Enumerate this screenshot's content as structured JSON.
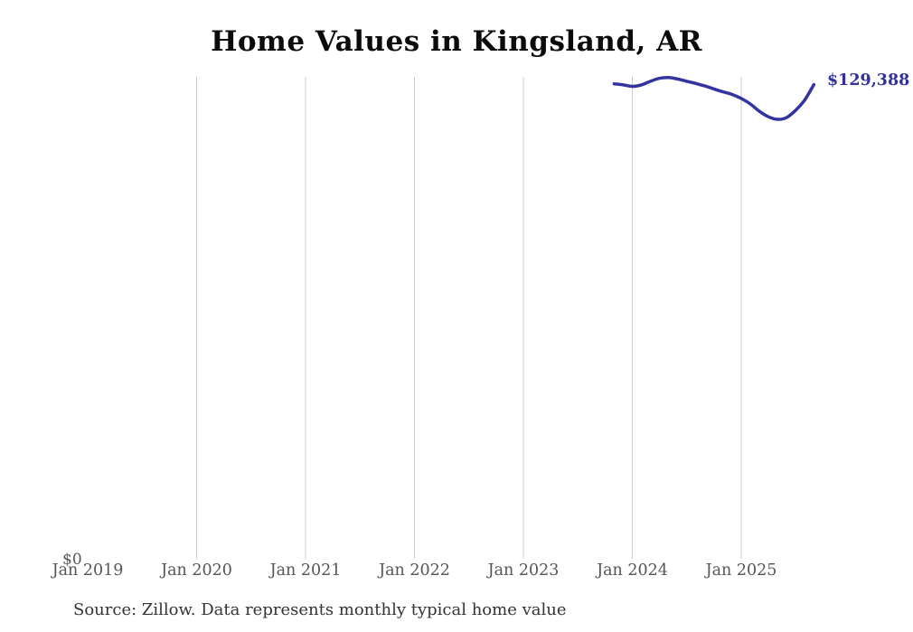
{
  "title": "Home Values in Kingsland, AR",
  "source_note": "Source: Zillow. Data represents monthly typical home value",
  "y_axis": {
    "zero_label": "$0"
  },
  "latest_value_label": "$129,388",
  "colors": {
    "line": "#3434a0",
    "end_label": "#30309e",
    "gridline": "#cccccc",
    "axis_text": "#555555",
    "title_text": "#0b0b0b",
    "source_text": "#333333"
  },
  "chart_data": {
    "type": "line",
    "title": "Home Values in Kingsland, AR",
    "xlabel": "",
    "ylabel": "",
    "x": [
      "Nov 2023",
      "Dec 2023",
      "Jan 2024",
      "Feb 2024",
      "Mar 2024",
      "Apr 2024",
      "May 2024",
      "Jun 2024",
      "Jul 2024",
      "Aug 2024",
      "Sep 2024",
      "Oct 2024",
      "Nov 2024",
      "Dec 2024",
      "Jan 2025",
      "Feb 2025",
      "Mar 2025",
      "Apr 2025",
      "May 2025",
      "Jun 2025",
      "Jul 2025",
      "Aug 2025",
      "Sep 2025"
    ],
    "values": [
      129600,
      129300,
      128900,
      129300,
      130300,
      131100,
      131300,
      130900,
      130300,
      129700,
      129000,
      128200,
      127400,
      126700,
      125600,
      124100,
      122100,
      120600,
      119900,
      120400,
      122400,
      125200,
      129388
    ],
    "x_ticks": [
      "Jan 2019",
      "Jan 2020",
      "Jan 2021",
      "Jan 2022",
      "Jan 2023",
      "Jan 2024",
      "Jan 2025"
    ],
    "ylim": [
      0,
      131500
    ],
    "grid": "vertical-only",
    "legend": "none",
    "end_point_label": "$129,388",
    "unit": "USD"
  }
}
